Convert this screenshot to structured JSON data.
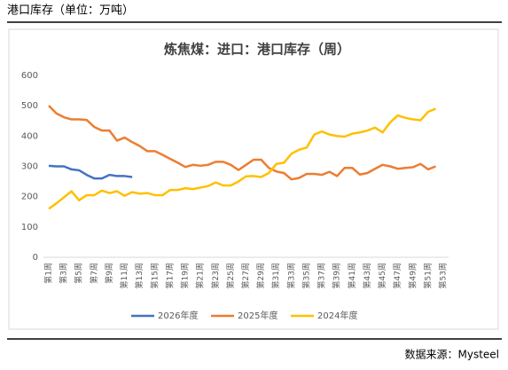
{
  "header": "港口库存（单位：万吨）",
  "source": "数据来源：Mysteel",
  "chart_data": {
    "type": "line",
    "title": "炼焦煤：进口：港口库存（周）",
    "categories": [
      "第1周",
      null,
      "第3周",
      null,
      "第5周",
      null,
      "第7周",
      null,
      "第9周",
      null,
      "第11周",
      null,
      "第13周",
      null,
      "第15周",
      null,
      "第17周",
      null,
      "第19周",
      null,
      "第21周",
      null,
      "第23周",
      null,
      "第25周",
      null,
      "第27周",
      null,
      "第29周",
      null,
      "第31周",
      null,
      "第33周",
      null,
      "第35周",
      null,
      "第37周",
      null,
      "第39周",
      null,
      "第41周",
      null,
      "第43周",
      null,
      "第45周",
      null,
      "第47周",
      null,
      "第49周",
      null,
      "第51周",
      null,
      "第53周"
    ],
    "series": [
      {
        "name": "2026年度",
        "color": "#4472c4",
        "values": [
          302,
          300,
          300,
          290,
          287,
          272,
          260,
          260,
          272,
          268,
          268,
          265,
          null,
          null,
          null,
          null,
          null,
          null,
          null,
          null,
          null,
          null,
          null,
          null,
          null,
          null,
          null,
          null,
          null,
          null,
          null,
          null,
          null,
          null,
          null,
          null,
          null,
          null,
          null,
          null,
          null,
          null,
          null,
          null,
          null,
          null,
          null,
          null,
          null,
          null,
          null,
          null,
          null
        ]
      },
      {
        "name": "2025年度",
        "color": "#ed7d31",
        "values": [
          500,
          475,
          462,
          455,
          455,
          453,
          430,
          418,
          418,
          385,
          395,
          380,
          367,
          350,
          350,
          338,
          325,
          312,
          298,
          305,
          302,
          305,
          315,
          315,
          305,
          288,
          305,
          322,
          322,
          295,
          283,
          278,
          257,
          262,
          275,
          275,
          272,
          282,
          268,
          295,
          295,
          273,
          278,
          292,
          305,
          300,
          292,
          295,
          297,
          308,
          290,
          300,
          null
        ]
      },
      {
        "name": "2024年度",
        "color": "#ffc000",
        "values": [
          160,
          178,
          198,
          218,
          188,
          205,
          205,
          220,
          212,
          218,
          203,
          215,
          210,
          212,
          205,
          205,
          222,
          222,
          228,
          225,
          230,
          235,
          247,
          237,
          237,
          250,
          267,
          268,
          265,
          278,
          308,
          312,
          342,
          355,
          362,
          405,
          415,
          405,
          400,
          398,
          408,
          412,
          418,
          428,
          412,
          445,
          468,
          460,
          455,
          452,
          480,
          490,
          null
        ]
      }
    ],
    "ylim": [
      0,
      600
    ],
    "yticks": [
      0,
      100,
      200,
      300,
      400,
      500,
      600
    ],
    "grid": false
  }
}
